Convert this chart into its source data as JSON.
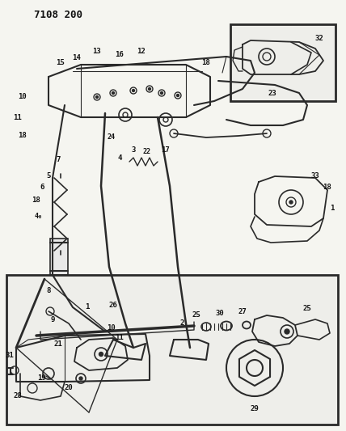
{
  "title": "7108 200",
  "bg_color": "#f5f5f0",
  "line_color": "#2a2a2a",
  "text_color": "#111111",
  "fig_width": 4.28,
  "fig_height": 5.33,
  "dpi": 100
}
